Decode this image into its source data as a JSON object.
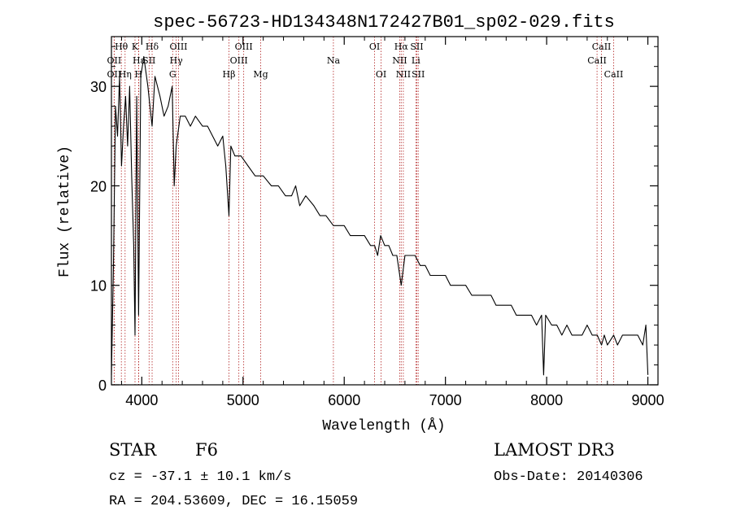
{
  "chart_data": {
    "type": "line",
    "title": "spec-56723-HD134348N172427B01_sp02-029.fits",
    "xlabel": "Wavelength (Å)",
    "ylabel": "Flux (relative)",
    "xlim": [
      3700,
      9100
    ],
    "ylim": [
      0,
      35
    ],
    "xticks": [
      4000,
      5000,
      6000,
      7000,
      8000,
      9000
    ],
    "yticks": [
      0,
      10,
      20,
      30
    ],
    "grid": false,
    "series": [
      {
        "name": "flux",
        "x": [
          3700,
          3720,
          3740,
          3760,
          3780,
          3800,
          3820,
          3840,
          3860,
          3880,
          3900,
          3920,
          3933,
          3950,
          3968,
          3990,
          4020,
          4060,
          4102,
          4130,
          4180,
          4220,
          4260,
          4300,
          4320,
          4340,
          4380,
          4430,
          4480,
          4530,
          4600,
          4650,
          4700,
          4750,
          4800,
          4830,
          4861,
          4880,
          4920,
          4980,
          5050,
          5120,
          5200,
          5280,
          5350,
          5420,
          5480,
          5520,
          5560,
          5620,
          5700,
          5760,
          5820,
          5893,
          5950,
          6000,
          6060,
          6100,
          6150,
          6200,
          6260,
          6300,
          6330,
          6360,
          6400,
          6440,
          6480,
          6520,
          6563,
          6600,
          6650,
          6700,
          6750,
          6800,
          6850,
          6900,
          6950,
          7000,
          7050,
          7100,
          7150,
          7200,
          7260,
          7300,
          7350,
          7400,
          7450,
          7500,
          7550,
          7600,
          7650,
          7700,
          7750,
          7800,
          7850,
          7900,
          7950,
          7970,
          7990,
          8050,
          8100,
          8150,
          8200,
          8250,
          8300,
          8350,
          8400,
          8450,
          8500,
          8542,
          8570,
          8600,
          8662,
          8700,
          8750,
          8800,
          8850,
          8900,
          8950,
          8980,
          9000
        ],
        "y": [
          1,
          12,
          28,
          25,
          31,
          22,
          26,
          29,
          24,
          30,
          21,
          14,
          5,
          29,
          7,
          31,
          33,
          30,
          26,
          31,
          29,
          27,
          28,
          30,
          20,
          24,
          27,
          27,
          26,
          27,
          26,
          26,
          25,
          24,
          25,
          22,
          17,
          24,
          23,
          23,
          22,
          21,
          21,
          20,
          20,
          19,
          19,
          20,
          18,
          19,
          18,
          17,
          17,
          16,
          16,
          16,
          15,
          15,
          15,
          15,
          14,
          14,
          13,
          15,
          14,
          14,
          13,
          13,
          10,
          13,
          13,
          13,
          12,
          12,
          11,
          11,
          11,
          11,
          10,
          10,
          10,
          10,
          9,
          9,
          9,
          9,
          9,
          8,
          8,
          8,
          8,
          7,
          7,
          7,
          7,
          6,
          7,
          1,
          7,
          6,
          6,
          5,
          6,
          5,
          5,
          5,
          6,
          5,
          5,
          4,
          5,
          4,
          5,
          4,
          5,
          5,
          5,
          5,
          4,
          6,
          1
        ]
      }
    ],
    "lines": [
      {
        "name": "Hθ",
        "wavelength": 3798,
        "row": 1
      },
      {
        "name": "OII",
        "wavelength": 3727,
        "row": 2
      },
      {
        "name": "OII",
        "wavelength": 3727,
        "row": 3
      },
      {
        "name": "K",
        "wavelength": 3933,
        "row": 1
      },
      {
        "name": "Hε",
        "wavelength": 3970,
        "row": 2
      },
      {
        "name": "Hη",
        "wavelength": 3835,
        "row": 3
      },
      {
        "name": "Hδ",
        "wavelength": 4102,
        "row": 1
      },
      {
        "name": "SII",
        "wavelength": 4072,
        "row": 2
      },
      {
        "name": "H",
        "wavelength": 3968,
        "row": 3
      },
      {
        "name": "OIII",
        "wavelength": 4363,
        "row": 1
      },
      {
        "name": "Hγ",
        "wavelength": 4340,
        "row": 2
      },
      {
        "name": "G",
        "wavelength": 4305,
        "row": 3
      },
      {
        "name": "OIII",
        "wavelength": 5007,
        "row": 1
      },
      {
        "name": "OIII",
        "wavelength": 4959,
        "row": 2
      },
      {
        "name": "Hβ",
        "wavelength": 4861,
        "row": 3
      },
      {
        "name": "Mg",
        "wavelength": 5175,
        "row": 3
      },
      {
        "name": "Na",
        "wavelength": 5893,
        "row": 2
      },
      {
        "name": "OI",
        "wavelength": 6300,
        "row": 1
      },
      {
        "name": "OI",
        "wavelength": 6364,
        "row": 3
      },
      {
        "name": "Hα",
        "wavelength": 6563,
        "row": 1
      },
      {
        "name": "SII",
        "wavelength": 6717,
        "row": 1
      },
      {
        "name": "NII",
        "wavelength": 6548,
        "row": 2
      },
      {
        "name": "Li",
        "wavelength": 6708,
        "row": 2
      },
      {
        "name": "NII",
        "wavelength": 6584,
        "row": 3
      },
      {
        "name": "SII",
        "wavelength": 6731,
        "row": 3
      },
      {
        "name": "CaII",
        "wavelength": 8542,
        "row": 1
      },
      {
        "name": "CaII",
        "wavelength": 8498,
        "row": 2
      },
      {
        "name": "CaII",
        "wavelength": 8662,
        "row": 3
      }
    ]
  },
  "info": {
    "class_label": "STAR",
    "subclass": "F6",
    "cz_text": "cz = -37.1 ± 10.1 km/s",
    "coord_text": "RA = 204.53609, DEC =  16.15059",
    "survey": "LAMOST DR3",
    "obs_date_text": "Obs-Date: 20140306"
  },
  "colors": {
    "spectrum": "#000000",
    "line_marker": "#b22222",
    "axes": "#000000"
  }
}
